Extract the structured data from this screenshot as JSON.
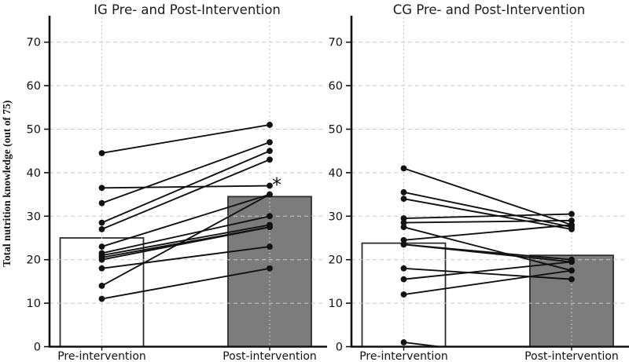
{
  "figure": {
    "background": "#ffffff",
    "ink": "#111111",
    "grid_color": "#c8c8c8",
    "bar_pre_fill": "#ffffff",
    "bar_post_fill": "#7c7c7c",
    "bar_border": "#2e2e2e",
    "ylabel": "Total nutrition knowledge (out of 75)"
  },
  "chart_data": [
    {
      "type": "bar",
      "subtype": "paired-dots-with-lines-over-bars",
      "title": "IG Pre- and Post-Intervention",
      "categories": [
        "Pre-intervention",
        "Post-intervention"
      ],
      "bar_means": [
        25,
        34.5
      ],
      "pairs": [
        [
          44.5,
          51
        ],
        [
          36.5,
          37
        ],
        [
          33,
          47
        ],
        [
          28.5,
          45
        ],
        [
          27,
          43
        ],
        [
          23,
          35
        ],
        [
          21.5,
          30
        ],
        [
          21,
          28
        ],
        [
          20.5,
          27.5
        ],
        [
          20,
          27.5
        ],
        [
          18,
          23
        ],
        [
          14,
          35
        ],
        [
          11,
          18
        ]
      ],
      "ylabel": "Total nutrition knowledge (out of 75)",
      "ylim": [
        0,
        75
      ],
      "yticks": [
        0,
        10,
        20,
        30,
        40,
        50,
        60,
        70
      ],
      "grid": true,
      "legend": "none",
      "significance_marker": {
        "text": "*",
        "category_index": 1,
        "value": 37
      }
    },
    {
      "type": "bar",
      "subtype": "paired-dots-with-lines-over-bars",
      "title": "CG Pre- and Post-Intervention",
      "categories": [
        "Pre-intervention",
        "Post-intervention"
      ],
      "bar_means": [
        23.8,
        21
      ],
      "pairs": [
        [
          41,
          28
        ],
        [
          35.5,
          27.5
        ],
        [
          34,
          27
        ],
        [
          29.5,
          30.5
        ],
        [
          28.5,
          29
        ],
        [
          27.5,
          17.5
        ],
        [
          24.5,
          28
        ],
        [
          23.5,
          20
        ],
        [
          23.5,
          19.5
        ],
        [
          18,
          15.5
        ],
        [
          15.5,
          19.5
        ],
        [
          12,
          17.5
        ],
        [
          1,
          -3.7
        ]
      ],
      "ylabel": "",
      "ylim": [
        0,
        75
      ],
      "yticks": [
        0,
        10,
        20,
        30,
        40,
        50,
        60,
        70
      ],
      "grid": true,
      "legend": "none"
    }
  ]
}
